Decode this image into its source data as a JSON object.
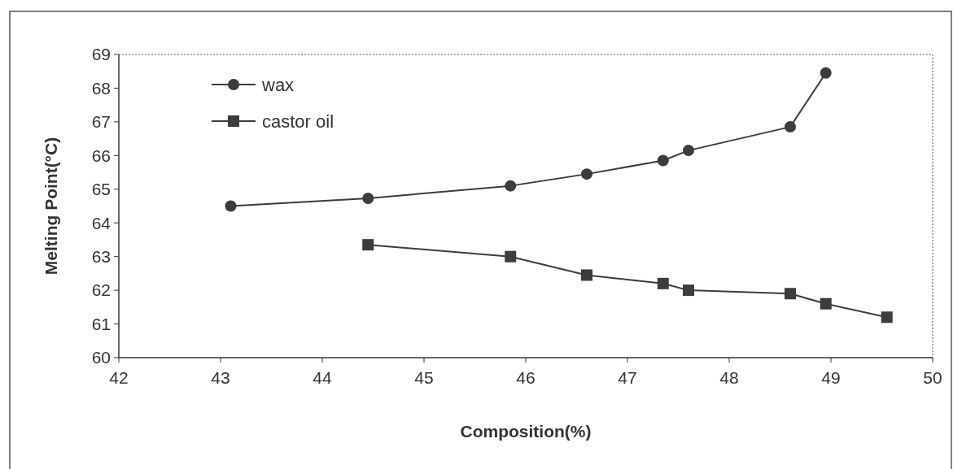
{
  "chart_data": {
    "type": "line",
    "xlabel": "Composition(%)",
    "ylabel": "Melting Point(°C)",
    "xlim": [
      42,
      50
    ],
    "xticks": [
      42,
      43,
      44,
      45,
      46,
      47,
      48,
      49,
      50
    ],
    "ylim": [
      60,
      69
    ],
    "yticks": [
      60,
      61,
      62,
      63,
      64,
      65,
      66,
      67,
      68,
      69
    ],
    "grid": false,
    "legend": "top left",
    "line_style": "solid",
    "series": [
      {
        "name": "wax",
        "color": "#3c3c3c",
        "marker": "circle",
        "x": [
          43.1,
          44.45,
          45.85,
          46.6,
          47.35,
          47.6,
          48.6,
          48.95
        ],
        "values": [
          64.5,
          64.73,
          65.1,
          65.45,
          65.85,
          66.15,
          66.85,
          68.45
        ]
      },
      {
        "name": "castor oil",
        "color": "#3c3c3c",
        "marker": "square",
        "x": [
          44.45,
          45.85,
          46.6,
          47.35,
          47.6,
          48.6,
          48.95,
          49.55
        ],
        "values": [
          63.35,
          63.0,
          62.45,
          62.2,
          62.0,
          61.9,
          61.6,
          61.2
        ]
      }
    ]
  }
}
